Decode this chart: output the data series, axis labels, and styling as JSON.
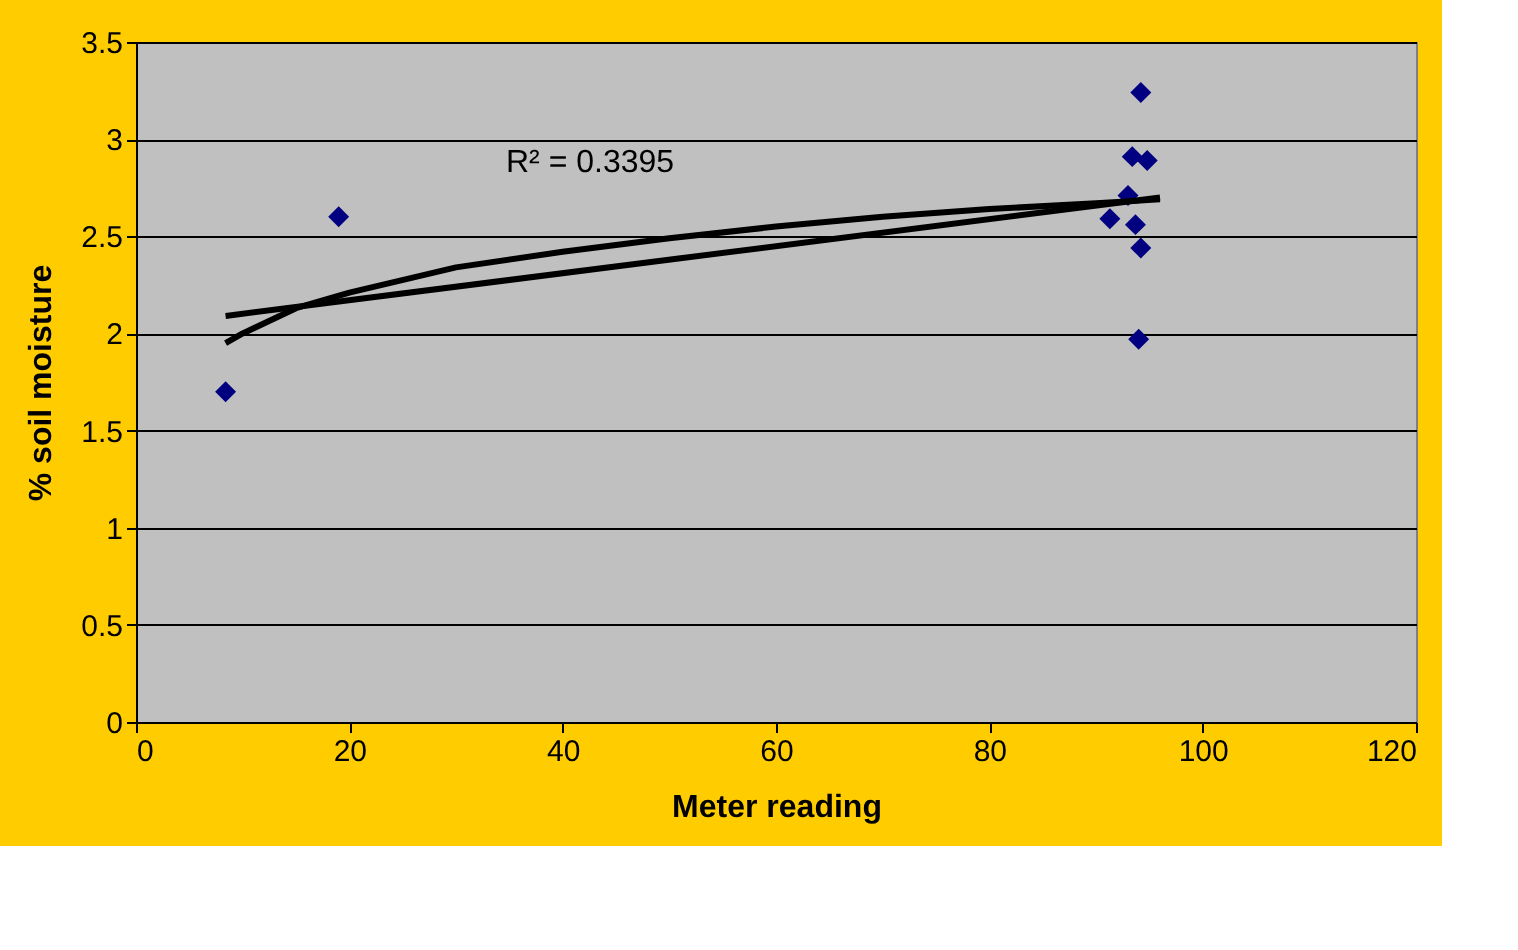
{
  "chart_data": {
    "type": "scatter",
    "xlabel": "Meter reading",
    "ylabel": "% soil moisture",
    "xlim": [
      0,
      120
    ],
    "xticks": [
      0,
      20,
      40,
      60,
      80,
      100,
      120
    ],
    "ylim": [
      0,
      3.5
    ],
    "yticks": [
      0,
      0.5,
      1,
      1.5,
      2,
      2.5,
      3,
      3.5
    ],
    "grid": "y",
    "annotations": [
      "R² = 0.3395"
    ],
    "series": [
      {
        "marker": "diamond",
        "color": "#000080",
        "x": [
          8.4,
          19,
          94.2,
          93.4,
          94.8,
          93,
          91.3,
          93.7,
          94.2,
          94
        ],
        "values": [
          1.7,
          2.6,
          3.24,
          2.91,
          2.89,
          2.71,
          2.59,
          2.56,
          2.44,
          1.97
        ]
      },
      {
        "type": "line",
        "color": "#000000",
        "x": [
          8.4,
          96
        ],
        "values": [
          2.09,
          2.7
        ]
      },
      {
        "type": "line",
        "color": "#000000",
        "x": [
          8.4,
          10,
          15,
          20,
          30,
          40,
          50,
          60,
          70,
          80,
          90,
          96
        ],
        "values": [
          1.95,
          2.0,
          2.13,
          2.21,
          2.34,
          2.42,
          2.49,
          2.55,
          2.6,
          2.64,
          2.67,
          2.69
        ]
      }
    ]
  }
}
